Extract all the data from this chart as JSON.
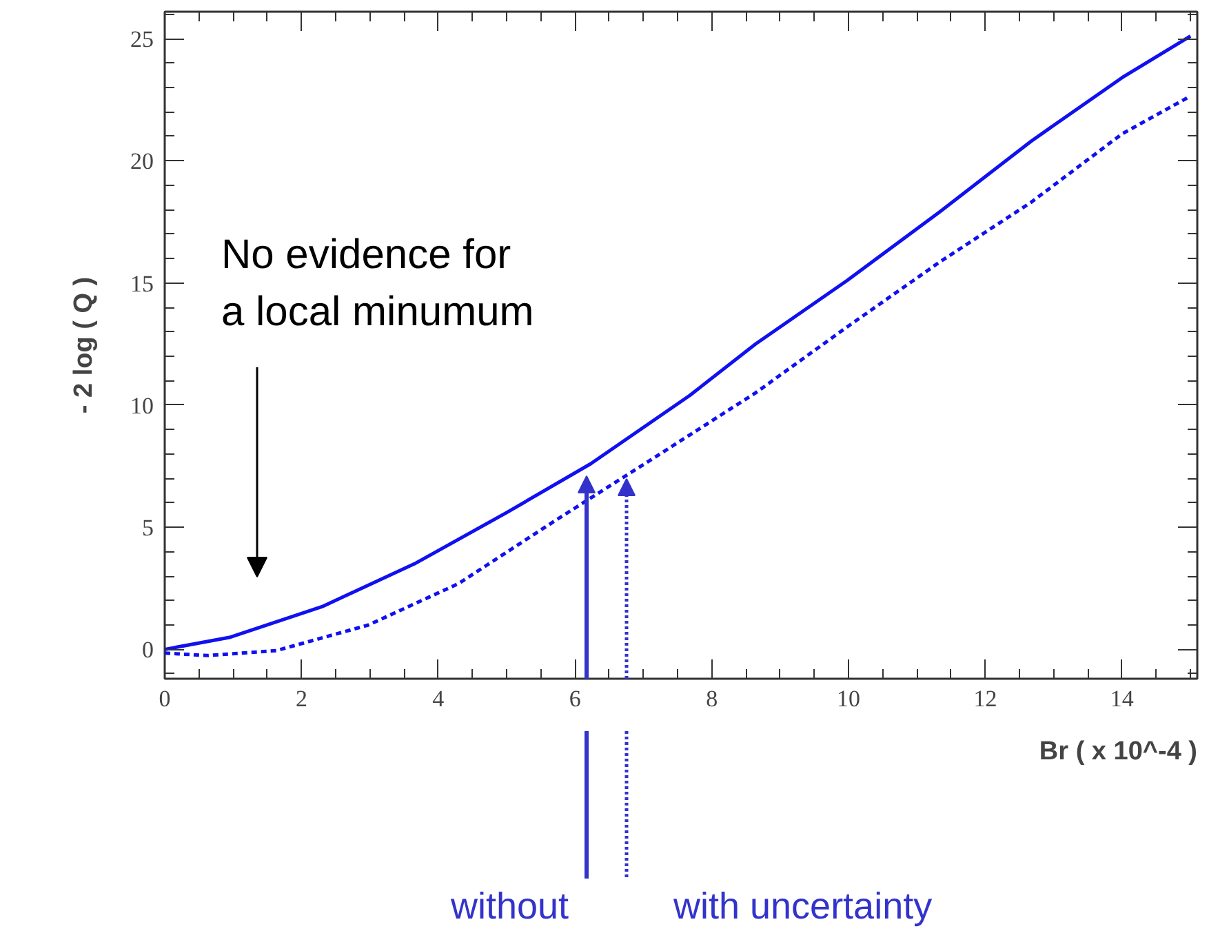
{
  "chart_data": {
    "type": "line",
    "xlabel": "Br ( x 10^-4 )",
    "ylabel": "- 2 log ( Q )",
    "xlim": [
      0,
      15.1
    ],
    "ylim": [
      -1.2,
      26.1
    ],
    "xticks": [
      0,
      2,
      4,
      6,
      8,
      10,
      12,
      14
    ],
    "yticks": [
      0,
      5,
      10,
      15,
      20,
      25
    ],
    "grid": false,
    "marker": "none",
    "series": [
      {
        "color": "#1010f0",
        "line_style": "solid",
        "x": [
          0,
          0.96,
          2.3,
          3.65,
          5.0,
          6.23,
          7.68,
          8.64,
          9.98,
          11.33,
          12.67,
          14.0,
          15.0
        ],
        "values": [
          0,
          0.5,
          1.75,
          3.5,
          5.6,
          7.6,
          10.4,
          12.5,
          15.1,
          17.9,
          20.8,
          23.4,
          25.1
        ]
      },
      {
        "color": "#1010f0",
        "line_style": "dashed",
        "x": [
          0,
          0.62,
          1.63,
          2.98,
          4.3,
          5.67,
          7.02,
          8.64,
          9.98,
          11.33,
          12.67,
          14.0,
          14.97
        ],
        "values": [
          -0.15,
          -0.25,
          -0.05,
          1.0,
          2.7,
          5.2,
          7.6,
          10.5,
          13.2,
          15.85,
          18.3,
          21.1,
          22.6
        ]
      }
    ],
    "annotations": [
      "No evidence for\na local minumum",
      "without",
      "with uncertainty"
    ]
  }
}
